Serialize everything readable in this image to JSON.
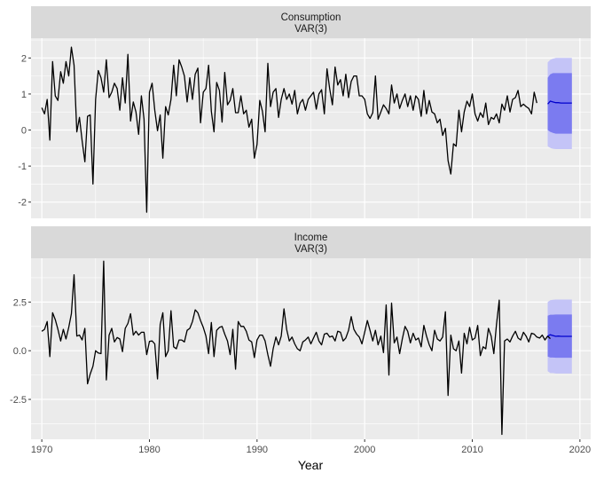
{
  "chart_data": {
    "type": "line",
    "xlabel": "Year",
    "x_ticks": [
      1970,
      1980,
      1990,
      2000,
      2010,
      2020
    ],
    "x_range": [
      1969,
      2021
    ],
    "grid": true,
    "legend": "none",
    "colors": {
      "panel_bg": "#EBEBEB",
      "strip_bg": "#D9D9D9",
      "grid": "#FFFFFF",
      "history_line": "#000000",
      "forecast_line": "#0000CC",
      "interval_80": "#7B7BF0",
      "interval_95": "#C4C4F7"
    },
    "panels": [
      {
        "strip": [
          "Consumption",
          "VAR(3)"
        ],
        "y_ticks": [
          -2,
          -1,
          0,
          1,
          2
        ],
        "y_tick_labels": [
          "-2",
          "-1",
          "0",
          "1",
          "2"
        ],
        "ylim": [
          -2.45,
          2.55
        ],
        "history_start": 1970.0,
        "step": 0.25,
        "history": [
          0.62,
          0.45,
          0.85,
          -0.28,
          1.9,
          0.95,
          0.82,
          1.62,
          1.3,
          1.9,
          1.5,
          2.3,
          1.8,
          -0.05,
          0.35,
          -0.3,
          -0.88,
          0.38,
          0.42,
          -1.5,
          0.85,
          1.65,
          1.45,
          1.05,
          1.95,
          0.9,
          1.05,
          1.3,
          1.15,
          0.55,
          1.45,
          0.75,
          2.1,
          0.25,
          0.78,
          0.5,
          -0.12,
          0.95,
          0.3,
          -2.28,
          1.05,
          1.3,
          0.55,
          -0.02,
          0.42,
          -0.78,
          0.65,
          0.42,
          0.85,
          1.8,
          0.95,
          1.95,
          1.75,
          1.5,
          0.78,
          1.45,
          0.85,
          1.55,
          1.72,
          0.2,
          1.05,
          1.15,
          1.8,
          0.52,
          -0.05,
          1.32,
          1.1,
          0.22,
          1.6,
          0.7,
          0.82,
          1.15,
          0.48,
          0.48,
          0.95,
          0.45,
          0.55,
          0.08,
          0.3,
          -0.78,
          -0.4,
          0.82,
          0.52,
          -0.05,
          1.85,
          0.65,
          1.05,
          1.15,
          0.35,
          0.85,
          1.15,
          0.85,
          1.0,
          0.72,
          1.1,
          0.45,
          0.75,
          0.85,
          0.55,
          0.85,
          0.95,
          1.05,
          0.58,
          1.0,
          1.12,
          0.45,
          1.7,
          1.15,
          0.7,
          1.75,
          1.25,
          1.4,
          0.95,
          1.55,
          0.9,
          1.35,
          1.5,
          1.5,
          0.95,
          0.95,
          0.85,
          0.45,
          0.32,
          0.48,
          1.5,
          0.3,
          0.5,
          0.7,
          0.6,
          0.45,
          1.25,
          0.75,
          1.0,
          0.6,
          0.82,
          1.0,
          0.65,
          0.95,
          0.55,
          0.95,
          0.85,
          0.38,
          1.1,
          0.45,
          0.82,
          0.5,
          0.45,
          0.2,
          0.3,
          -0.15,
          0.05,
          -0.85,
          -1.22,
          -0.38,
          -0.45,
          0.55,
          -0.05,
          0.5,
          0.8,
          0.65,
          1.0,
          0.45,
          0.25,
          0.48,
          0.35,
          0.75,
          0.15,
          0.35,
          0.3,
          0.45,
          0.2,
          0.72,
          0.55,
          0.95,
          0.5,
          0.85,
          0.9,
          1.1,
          0.65,
          0.72,
          0.65,
          0.6,
          0.45,
          1.05,
          0.75
        ],
        "forecast_start": 2017.0,
        "forecast": [
          0.72,
          0.8,
          0.78,
          0.76,
          0.76,
          0.75,
          0.75,
          0.75,
          0.75,
          0.75
        ],
        "pi80": [
          [
            0.0,
            1.45
          ],
          [
            -0.05,
            1.55
          ],
          [
            -0.08,
            1.58
          ],
          [
            -0.1,
            1.58
          ],
          [
            -0.1,
            1.58
          ],
          [
            -0.1,
            1.58
          ],
          [
            -0.1,
            1.58
          ],
          [
            -0.1,
            1.58
          ],
          [
            -0.1,
            1.58
          ],
          [
            -0.1,
            1.58
          ]
        ],
        "pi95": [
          [
            -0.45,
            1.88
          ],
          [
            -0.5,
            1.95
          ],
          [
            -0.52,
            1.98
          ],
          [
            -0.53,
            2.0
          ],
          [
            -0.53,
            2.0
          ],
          [
            -0.53,
            2.0
          ],
          [
            -0.53,
            2.0
          ],
          [
            -0.53,
            2.0
          ],
          [
            -0.53,
            2.0
          ],
          [
            -0.53,
            2.0
          ]
        ]
      },
      {
        "strip": [
          "Income",
          "VAR(3)"
        ],
        "y_ticks": [
          -2.5,
          0,
          2.5
        ],
        "y_tick_labels": [
          "-2.5",
          "0.0",
          "2.5"
        ],
        "ylim": [
          -4.55,
          4.75
        ],
        "history_start": 1970.0,
        "step": 0.25,
        "history": [
          1.0,
          1.1,
          1.5,
          -0.3,
          1.95,
          1.6,
          1.1,
          0.5,
          1.1,
          0.6,
          1.2,
          1.9,
          3.9,
          0.75,
          0.8,
          0.55,
          1.15,
          -1.7,
          -1.2,
          -0.8,
          0.0,
          -0.12,
          -0.15,
          4.6,
          -1.5,
          0.8,
          1.15,
          0.45,
          0.68,
          0.6,
          -0.05,
          1.15,
          1.4,
          1.9,
          0.8,
          1.0,
          0.8,
          0.95,
          0.95,
          -0.2,
          0.48,
          0.5,
          0.35,
          -1.45,
          1.35,
          1.95,
          -0.3,
          0.0,
          2.05,
          0.2,
          0.1,
          0.55,
          0.55,
          0.45,
          1.05,
          1.15,
          1.5,
          2.1,
          1.95,
          1.55,
          1.2,
          0.75,
          -0.15,
          1.45,
          -0.3,
          1.05,
          1.2,
          1.25,
          0.85,
          0.5,
          -0.2,
          1.1,
          -0.95,
          1.5,
          1.25,
          1.25,
          1.0,
          0.55,
          0.45,
          -0.35,
          0.55,
          0.8,
          0.8,
          0.5,
          -0.2,
          -0.8,
          0.1,
          0.7,
          0.3,
          0.75,
          2.15,
          1.1,
          0.5,
          0.7,
          0.35,
          0.1,
          0.0,
          0.45,
          0.55,
          0.7,
          0.35,
          0.65,
          0.95,
          0.5,
          0.3,
          0.85,
          0.9,
          0.7,
          0.75,
          0.5,
          1.0,
          0.95,
          0.5,
          0.65,
          1.05,
          1.75,
          1.1,
          0.85,
          0.7,
          0.35,
          0.95,
          1.55,
          1.05,
          0.5,
          1.05,
          0.3,
          0.75,
          -0.1,
          2.35,
          -1.25,
          2.45,
          0.4,
          0.7,
          -0.15,
          0.6,
          1.25,
          1.0,
          0.4,
          0.9,
          0.55,
          0.65,
          0.2,
          1.3,
          0.75,
          0.3,
          0.0,
          1.05,
          0.6,
          0.5,
          0.7,
          2.0,
          -2.3,
          0.8,
          0.1,
          0.0,
          0.5,
          -1.15,
          0.9,
          0.35,
          1.2,
          0.55,
          0.65,
          1.3,
          -0.25,
          0.2,
          0.1,
          1.15,
          0.75,
          -0.15,
          1.35,
          2.6,
          -4.3,
          0.5,
          0.6,
          0.45,
          0.75,
          1.0,
          0.65,
          0.55,
          0.95,
          0.75,
          0.45,
          0.9,
          0.85,
          0.7,
          0.65,
          0.8,
          0.55,
          0.75,
          0.62
        ],
        "forecast_start": 2017.0,
        "forecast": [
          0.75,
          0.82,
          0.78,
          0.74,
          0.75,
          0.74,
          0.74,
          0.74,
          0.74,
          0.74
        ],
        "pi80": [
          [
            -0.3,
            1.8
          ],
          [
            -0.35,
            1.85
          ],
          [
            -0.35,
            1.85
          ],
          [
            -0.36,
            1.86
          ],
          [
            -0.36,
            1.86
          ],
          [
            -0.36,
            1.86
          ],
          [
            -0.36,
            1.86
          ],
          [
            -0.36,
            1.86
          ],
          [
            -0.36,
            1.86
          ],
          [
            -0.36,
            1.86
          ]
        ],
        "pi95": [
          [
            -1.05,
            2.5
          ],
          [
            -1.15,
            2.6
          ],
          [
            -1.15,
            2.62
          ],
          [
            -1.17,
            2.63
          ],
          [
            -1.17,
            2.63
          ],
          [
            -1.17,
            2.63
          ],
          [
            -1.17,
            2.63
          ],
          [
            -1.17,
            2.63
          ],
          [
            -1.17,
            2.63
          ],
          [
            -1.17,
            2.63
          ]
        ]
      }
    ]
  }
}
